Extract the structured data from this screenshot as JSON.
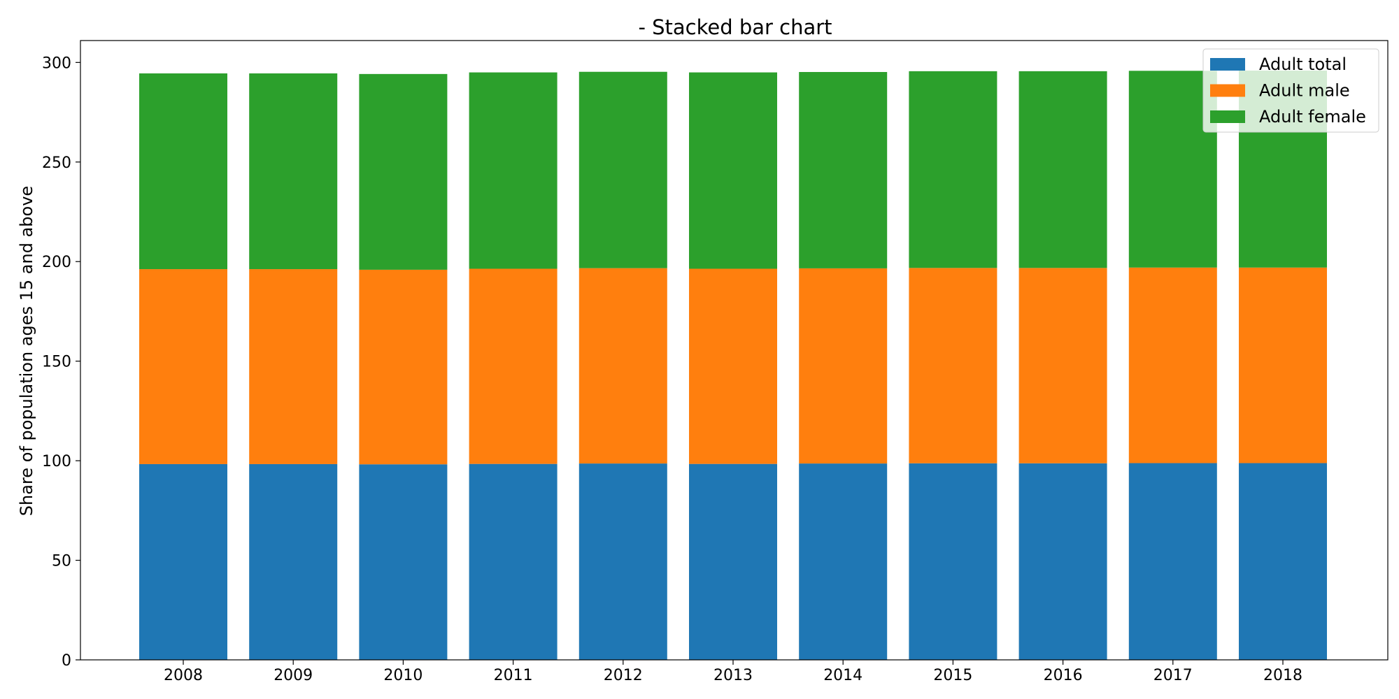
{
  "chart_data": {
    "type": "bar",
    "stacked": true,
    "title": "- Stacked bar chart",
    "xlabel": "",
    "ylabel": "Share of population ages 15 and above",
    "categories": [
      "2008",
      "2009",
      "2010",
      "2011",
      "2012",
      "2013",
      "2014",
      "2015",
      "2016",
      "2017",
      "2018"
    ],
    "series": [
      {
        "name": "Adult total",
        "color": "#1f77b4",
        "values": [
          98.3,
          98.3,
          98.2,
          98.4,
          98.6,
          98.4,
          98.6,
          98.7,
          98.7,
          98.8,
          98.8
        ]
      },
      {
        "name": "Adult male",
        "color": "#ff7f0e",
        "values": [
          97.9,
          97.9,
          97.7,
          98.0,
          98.1,
          98.0,
          98.0,
          98.1,
          98.1,
          98.2,
          98.2
        ]
      },
      {
        "name": "Adult female",
        "color": "#2ca02c",
        "values": [
          98.3,
          98.3,
          98.3,
          98.6,
          98.6,
          98.6,
          98.6,
          98.8,
          98.8,
          98.8,
          98.9
        ]
      }
    ],
    "yticks": [
      0,
      50,
      100,
      150,
      200,
      250,
      300
    ],
    "ylim": [
      0,
      311
    ],
    "grid": false,
    "legend_position": "top-right"
  }
}
